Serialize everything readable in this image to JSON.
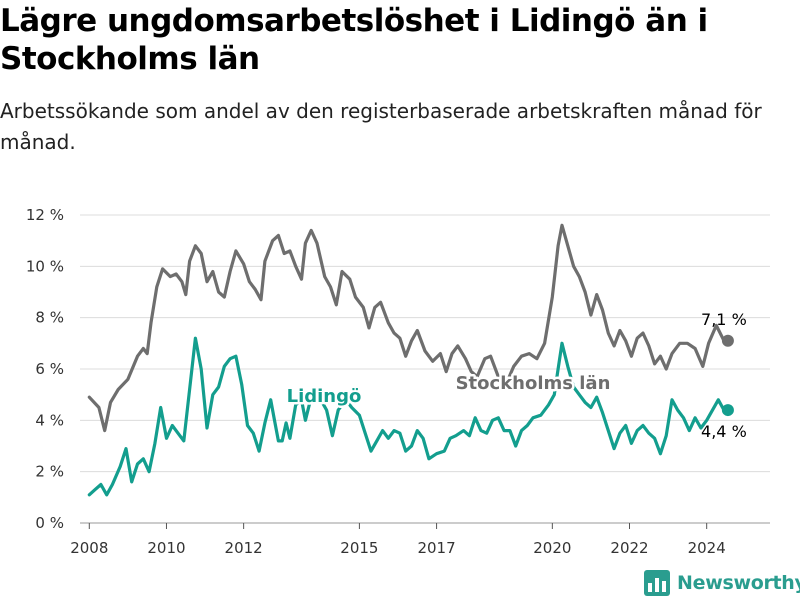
{
  "header": {
    "title": "Lägre ungdomsarbetslöshet i Lidingö än i Stockholms län",
    "subtitle": "Arbetssökande som andel av den registerbaserade arbetskraften månad för månad."
  },
  "brand": {
    "name": "Newsworthy",
    "icon": "bar-chart-logo-icon"
  },
  "chart_data": {
    "type": "line",
    "title": "Lägre ungdomsarbetslöshet i Lidingö än i Stockholms län",
    "subtitle": "Arbetssökande som andel av den registerbaserade arbetskraften månad för månad.",
    "xlabel": "",
    "ylabel": "",
    "xlim": [
      2007.5,
      2025.9
    ],
    "ylim": [
      0,
      12
    ],
    "x_ticks": [
      {
        "value": 2008,
        "label": "2008"
      },
      {
        "value": 2010,
        "label": "2010"
      },
      {
        "value": 2012,
        "label": "2012"
      },
      {
        "value": 2015,
        "label": "2015"
      },
      {
        "value": 2017,
        "label": "2017"
      },
      {
        "value": 2020,
        "label": "2020"
      },
      {
        "value": 2022,
        "label": "2022"
      },
      {
        "value": 2024,
        "label": "2024"
      }
    ],
    "y_ticks": [
      {
        "value": 0,
        "label": "0 %"
      },
      {
        "value": 2,
        "label": "2 %"
      },
      {
        "value": 4,
        "label": "4 %"
      },
      {
        "value": 6,
        "label": "6 %"
      },
      {
        "value": 8,
        "label": "8 %"
      },
      {
        "value": 10,
        "label": "10 %"
      },
      {
        "value": 12,
        "label": "12 %"
      }
    ],
    "grid": "horizontal",
    "series": [
      {
        "name": "Stockholms län",
        "color": "#6e6e6e",
        "end_label": "7,1 %",
        "points": [
          [
            2008.0,
            4.9
          ],
          [
            2008.25,
            4.5
          ],
          [
            2008.4,
            3.6
          ],
          [
            2008.55,
            4.7
          ],
          [
            2008.75,
            5.2
          ],
          [
            2009.0,
            5.6
          ],
          [
            2009.25,
            6.5
          ],
          [
            2009.4,
            6.8
          ],
          [
            2009.5,
            6.6
          ],
          [
            2009.6,
            7.8
          ],
          [
            2009.75,
            9.2
          ],
          [
            2009.9,
            9.9
          ],
          [
            2010.1,
            9.6
          ],
          [
            2010.25,
            9.7
          ],
          [
            2010.4,
            9.4
          ],
          [
            2010.5,
            8.9
          ],
          [
            2010.6,
            10.2
          ],
          [
            2010.75,
            10.8
          ],
          [
            2010.9,
            10.5
          ],
          [
            2011.05,
            9.4
          ],
          [
            2011.2,
            9.8
          ],
          [
            2011.35,
            9.0
          ],
          [
            2011.5,
            8.8
          ],
          [
            2011.65,
            9.8
          ],
          [
            2011.8,
            10.6
          ],
          [
            2012.0,
            10.1
          ],
          [
            2012.15,
            9.4
          ],
          [
            2012.3,
            9.1
          ],
          [
            2012.45,
            8.7
          ],
          [
            2012.55,
            10.2
          ],
          [
            2012.75,
            11.0
          ],
          [
            2012.9,
            11.2
          ],
          [
            2013.05,
            10.5
          ],
          [
            2013.2,
            10.6
          ],
          [
            2013.35,
            10.0
          ],
          [
            2013.5,
            9.5
          ],
          [
            2013.6,
            10.9
          ],
          [
            2013.75,
            11.4
          ],
          [
            2013.9,
            10.9
          ],
          [
            2014.1,
            9.6
          ],
          [
            2014.25,
            9.2
          ],
          [
            2014.4,
            8.5
          ],
          [
            2014.55,
            9.8
          ],
          [
            2014.75,
            9.5
          ],
          [
            2014.9,
            8.8
          ],
          [
            2015.1,
            8.4
          ],
          [
            2015.25,
            7.6
          ],
          [
            2015.4,
            8.4
          ],
          [
            2015.55,
            8.6
          ],
          [
            2015.75,
            7.8
          ],
          [
            2015.9,
            7.4
          ],
          [
            2016.05,
            7.2
          ],
          [
            2016.2,
            6.5
          ],
          [
            2016.35,
            7.1
          ],
          [
            2016.5,
            7.5
          ],
          [
            2016.7,
            6.7
          ],
          [
            2016.9,
            6.3
          ],
          [
            2017.1,
            6.6
          ],
          [
            2017.25,
            5.9
          ],
          [
            2017.4,
            6.6
          ],
          [
            2017.55,
            6.9
          ],
          [
            2017.75,
            6.4
          ],
          [
            2017.9,
            5.9
          ],
          [
            2018.05,
            5.7
          ],
          [
            2018.25,
            6.4
          ],
          [
            2018.4,
            6.5
          ],
          [
            2018.6,
            5.7
          ],
          [
            2018.8,
            5.4
          ],
          [
            2019.0,
            6.1
          ],
          [
            2019.2,
            6.5
          ],
          [
            2019.4,
            6.6
          ],
          [
            2019.6,
            6.4
          ],
          [
            2019.8,
            7.0
          ],
          [
            2020.0,
            8.8
          ],
          [
            2020.15,
            10.8
          ],
          [
            2020.25,
            11.6
          ],
          [
            2020.4,
            10.8
          ],
          [
            2020.55,
            10.0
          ],
          [
            2020.7,
            9.6
          ],
          [
            2020.85,
            9.0
          ],
          [
            2021.0,
            8.1
          ],
          [
            2021.15,
            8.9
          ],
          [
            2021.3,
            8.3
          ],
          [
            2021.45,
            7.4
          ],
          [
            2021.6,
            6.9
          ],
          [
            2021.75,
            7.5
          ],
          [
            2021.9,
            7.1
          ],
          [
            2022.05,
            6.5
          ],
          [
            2022.2,
            7.2
          ],
          [
            2022.35,
            7.4
          ],
          [
            2022.5,
            6.9
          ],
          [
            2022.65,
            6.2
          ],
          [
            2022.8,
            6.5
          ],
          [
            2022.95,
            6.0
          ],
          [
            2023.1,
            6.6
          ],
          [
            2023.3,
            7.0
          ],
          [
            2023.5,
            7.0
          ],
          [
            2023.7,
            6.8
          ],
          [
            2023.9,
            6.1
          ],
          [
            2024.05,
            7.0
          ],
          [
            2024.25,
            7.7
          ],
          [
            2024.45,
            7.1
          ],
          [
            2024.55,
            7.1
          ]
        ]
      },
      {
        "name": "Lidingö",
        "color": "#139e8e",
        "end_label": "4,4 %",
        "points": [
          [
            2008.0,
            1.1
          ],
          [
            2008.15,
            1.3
          ],
          [
            2008.3,
            1.5
          ],
          [
            2008.45,
            1.1
          ],
          [
            2008.6,
            1.5
          ],
          [
            2008.8,
            2.2
          ],
          [
            2008.95,
            2.9
          ],
          [
            2009.1,
            1.6
          ],
          [
            2009.25,
            2.3
          ],
          [
            2009.4,
            2.5
          ],
          [
            2009.55,
            2.0
          ],
          [
            2009.7,
            3.1
          ],
          [
            2009.85,
            4.5
          ],
          [
            2010.0,
            3.3
          ],
          [
            2010.15,
            3.8
          ],
          [
            2010.3,
            3.5
          ],
          [
            2010.45,
            3.2
          ],
          [
            2010.6,
            5.2
          ],
          [
            2010.75,
            7.2
          ],
          [
            2010.9,
            6.0
          ],
          [
            2011.05,
            3.7
          ],
          [
            2011.2,
            5.0
          ],
          [
            2011.35,
            5.3
          ],
          [
            2011.5,
            6.1
          ],
          [
            2011.65,
            6.4
          ],
          [
            2011.8,
            6.5
          ],
          [
            2011.95,
            5.4
          ],
          [
            2012.1,
            3.8
          ],
          [
            2012.25,
            3.5
          ],
          [
            2012.4,
            2.8
          ],
          [
            2012.55,
            3.9
          ],
          [
            2012.7,
            4.8
          ],
          [
            2012.8,
            4.0
          ],
          [
            2012.9,
            3.2
          ],
          [
            2013.0,
            3.2
          ],
          [
            2013.1,
            3.9
          ],
          [
            2013.2,
            3.3
          ],
          [
            2013.35,
            4.6
          ],
          [
            2013.5,
            4.8
          ],
          [
            2013.6,
            4.0
          ],
          [
            2013.8,
            5.2
          ],
          [
            2014.0,
            4.8
          ],
          [
            2014.15,
            4.4
          ],
          [
            2014.3,
            3.4
          ],
          [
            2014.45,
            4.4
          ],
          [
            2014.65,
            4.8
          ],
          [
            2014.8,
            4.5
          ],
          [
            2015.0,
            4.2
          ],
          [
            2015.15,
            3.5
          ],
          [
            2015.3,
            2.8
          ],
          [
            2015.45,
            3.2
          ],
          [
            2015.6,
            3.6
          ],
          [
            2015.75,
            3.3
          ],
          [
            2015.9,
            3.6
          ],
          [
            2016.05,
            3.5
          ],
          [
            2016.2,
            2.8
          ],
          [
            2016.35,
            3.0
          ],
          [
            2016.5,
            3.6
          ],
          [
            2016.65,
            3.3
          ],
          [
            2016.8,
            2.5
          ],
          [
            2017.0,
            2.7
          ],
          [
            2017.2,
            2.8
          ],
          [
            2017.35,
            3.3
          ],
          [
            2017.5,
            3.4
          ],
          [
            2017.7,
            3.6
          ],
          [
            2017.85,
            3.4
          ],
          [
            2018.0,
            4.1
          ],
          [
            2018.15,
            3.6
          ],
          [
            2018.3,
            3.5
          ],
          [
            2018.45,
            4.0
          ],
          [
            2018.6,
            4.1
          ],
          [
            2018.75,
            3.6
          ],
          [
            2018.9,
            3.6
          ],
          [
            2019.05,
            3.0
          ],
          [
            2019.2,
            3.6
          ],
          [
            2019.35,
            3.8
          ],
          [
            2019.5,
            4.1
          ],
          [
            2019.7,
            4.2
          ],
          [
            2019.9,
            4.6
          ],
          [
            2020.05,
            5.0
          ],
          [
            2020.15,
            6.0
          ],
          [
            2020.25,
            7.0
          ],
          [
            2020.4,
            6.1
          ],
          [
            2020.55,
            5.3
          ],
          [
            2020.7,
            5.0
          ],
          [
            2020.85,
            4.7
          ],
          [
            2021.0,
            4.5
          ],
          [
            2021.15,
            4.9
          ],
          [
            2021.3,
            4.3
          ],
          [
            2021.45,
            3.6
          ],
          [
            2021.6,
            2.9
          ],
          [
            2021.75,
            3.5
          ],
          [
            2021.9,
            3.8
          ],
          [
            2022.05,
            3.1
          ],
          [
            2022.2,
            3.6
          ],
          [
            2022.35,
            3.8
          ],
          [
            2022.5,
            3.5
          ],
          [
            2022.65,
            3.3
          ],
          [
            2022.8,
            2.7
          ],
          [
            2022.95,
            3.4
          ],
          [
            2023.1,
            4.8
          ],
          [
            2023.25,
            4.4
          ],
          [
            2023.4,
            4.1
          ],
          [
            2023.55,
            3.6
          ],
          [
            2023.7,
            4.1
          ],
          [
            2023.85,
            3.7
          ],
          [
            2024.0,
            4.0
          ],
          [
            2024.15,
            4.4
          ],
          [
            2024.3,
            4.8
          ],
          [
            2024.45,
            4.4
          ],
          [
            2024.55,
            4.4
          ]
        ]
      }
    ]
  }
}
